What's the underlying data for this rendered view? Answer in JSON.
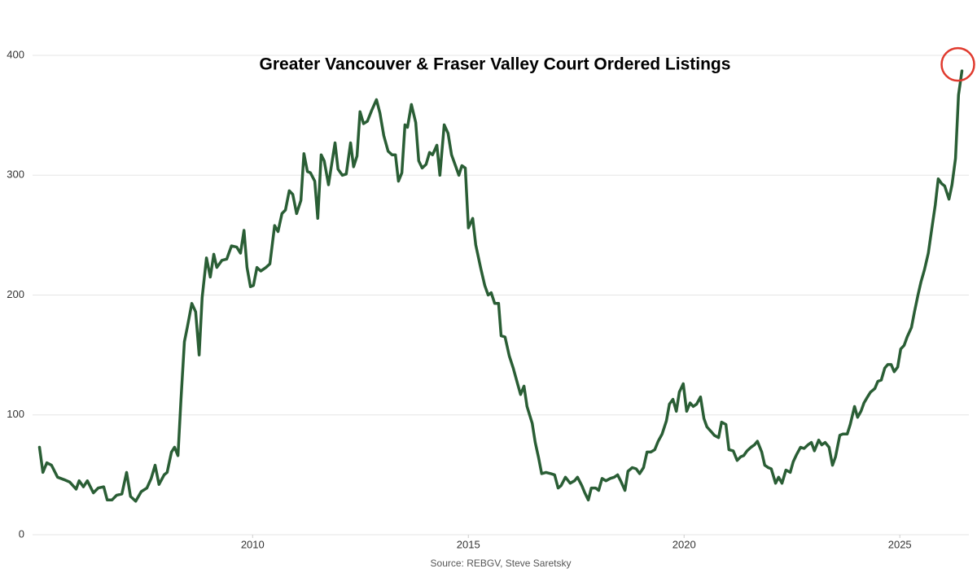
{
  "chart_data": {
    "type": "line",
    "title": "Greater Vancouver & Fraser Valley Court Ordered Listings",
    "source": "Source: REBGV, Steve Saretsky",
    "color": "#2a5e35",
    "highlight_color": "#e03a2e",
    "grid": true,
    "xlim": [
      2004.9,
      2026.6
    ],
    "xticks": [
      2010,
      2015,
      2020,
      2025
    ],
    "ylim": [
      0,
      400
    ],
    "yticks": [
      0,
      100,
      200,
      300,
      400
    ],
    "x": [
      2005.06,
      2005.14,
      2005.23,
      2005.34,
      2005.48,
      2005.63,
      2005.76,
      2005.91,
      2005.98,
      2006.08,
      2006.17,
      2006.31,
      2006.42,
      2006.55,
      2006.63,
      2006.74,
      2006.85,
      2006.97,
      2007.08,
      2007.17,
      2007.29,
      2007.42,
      2007.55,
      2007.65,
      2007.74,
      2007.83,
      2007.95,
      2008.02,
      2008.12,
      2008.19,
      2008.27,
      2008.34,
      2008.42,
      2008.49,
      2008.59,
      2008.68,
      2008.76,
      2008.83,
      2008.93,
      2009.02,
      2009.1,
      2009.17,
      2009.29,
      2009.4,
      2009.51,
      2009.63,
      2009.72,
      2009.8,
      2009.87,
      2009.95,
      2010.02,
      2010.1,
      2010.19,
      2010.31,
      2010.4,
      2010.51,
      2010.59,
      2010.68,
      2010.76,
      2010.85,
      2010.93,
      2011.02,
      2011.12,
      2011.19,
      2011.27,
      2011.34,
      2011.44,
      2011.51,
      2011.59,
      2011.66,
      2011.76,
      2011.81,
      2011.91,
      2011.98,
      2012.08,
      2012.17,
      2012.27,
      2012.34,
      2012.42,
      2012.49,
      2012.57,
      2012.66,
      2012.76,
      2012.87,
      2012.95,
      2013.04,
      2013.14,
      2013.23,
      2013.31,
      2013.38,
      2013.46,
      2013.53,
      2013.59,
      2013.68,
      2013.78,
      2013.85,
      2013.93,
      2014.02,
      2014.1,
      2014.17,
      2014.27,
      2014.34,
      2014.44,
      2014.53,
      2014.61,
      2014.7,
      2014.78,
      2014.85,
      2014.93,
      2015.0,
      2015.1,
      2015.17,
      2015.29,
      2015.38,
      2015.46,
      2015.53,
      2015.61,
      2015.7,
      2015.76,
      2015.85,
      2015.95,
      2016.04,
      2016.14,
      2016.21,
      2016.29,
      2016.36,
      2016.48,
      2016.55,
      2016.63,
      2016.7,
      2016.8,
      2016.91,
      2017.0,
      2017.08,
      2017.15,
      2017.25,
      2017.36,
      2017.46,
      2017.53,
      2017.63,
      2017.7,
      2017.78,
      2017.85,
      2017.95,
      2018.02,
      2018.1,
      2018.19,
      2018.29,
      2018.38,
      2018.46,
      2018.53,
      2018.63,
      2018.7,
      2018.8,
      2018.89,
      2018.97,
      2019.06,
      2019.14,
      2019.23,
      2019.32,
      2019.4,
      2019.49,
      2019.59,
      2019.66,
      2019.74,
      2019.82,
      2019.89,
      2019.98,
      2020.06,
      2020.14,
      2020.21,
      2020.29,
      2020.38,
      2020.46,
      2020.53,
      2020.63,
      2020.7,
      2020.8,
      2020.87,
      2020.97,
      2021.04,
      2021.14,
      2021.23,
      2021.31,
      2021.38,
      2021.46,
      2021.55,
      2021.63,
      2021.7,
      2021.8,
      2021.87,
      2021.95,
      2022.02,
      2022.12,
      2022.19,
      2022.27,
      2022.36,
      2022.46,
      2022.53,
      2022.61,
      2022.7,
      2022.78,
      2022.87,
      2022.95,
      2023.02,
      2023.12,
      2023.19,
      2023.27,
      2023.36,
      2023.44,
      2023.51,
      2023.61,
      2023.68,
      2023.78,
      2023.85,
      2023.95,
      2024.02,
      2024.1,
      2024.17,
      2024.25,
      2024.32,
      2024.42,
      2024.49,
      2024.57,
      2024.65,
      2024.72,
      2024.8,
      2024.87,
      2024.95,
      2025.02,
      2025.1,
      2025.17,
      2025.27,
      2025.34,
      2025.42,
      2025.49,
      2025.57,
      2025.66,
      2025.74,
      2025.82,
      2025.89,
      2025.97,
      2026.04,
      2026.14,
      2026.21,
      2026.29,
      2026.36,
      2026.44
    ],
    "values": [
      73,
      52,
      60,
      58,
      48,
      46,
      44,
      38,
      45,
      40,
      45,
      35,
      39,
      40,
      29,
      29,
      33,
      34,
      52,
      32,
      28,
      36,
      39,
      47,
      58,
      42,
      50,
      52,
      69,
      73,
      66,
      113,
      161,
      174,
      193,
      186,
      150,
      198,
      231,
      215,
      234,
      223,
      229,
      230,
      241,
      240,
      235,
      254,
      223,
      207,
      208,
      223,
      220,
      223,
      226,
      258,
      253,
      268,
      271,
      287,
      284,
      268,
      279,
      318,
      303,
      302,
      295,
      264,
      317,
      312,
      292,
      304,
      327,
      305,
      300,
      301,
      327,
      307,
      316,
      353,
      343,
      345,
      354,
      363,
      352,
      333,
      320,
      317,
      317,
      295,
      302,
      342,
      340,
      359,
      344,
      312,
      306,
      309,
      319,
      317,
      325,
      300,
      342,
      335,
      317,
      308,
      300,
      308,
      306,
      256,
      264,
      242,
      222,
      208,
      200,
      202,
      193,
      193,
      166,
      165,
      149,
      139,
      126,
      117,
      124,
      107,
      93,
      77,
      64,
      51,
      52,
      51,
      50,
      39,
      41,
      48,
      43,
      45,
      48,
      41,
      35,
      29,
      39,
      39,
      37,
      47,
      45,
      47,
      48,
      50,
      45,
      37,
      53,
      56,
      55,
      51,
      56,
      69,
      69,
      71,
      78,
      84,
      95,
      109,
      113,
      103,
      119,
      126,
      103,
      110,
      107,
      109,
      115,
      97,
      90,
      86,
      83,
      81,
      94,
      92,
      71,
      70,
      62,
      65,
      66,
      70,
      73,
      75,
      78,
      69,
      58,
      56,
      55,
      43,
      48,
      43,
      54,
      52,
      61,
      67,
      73,
      72,
      75,
      77,
      70,
      79,
      75,
      77,
      73,
      58,
      65,
      83,
      84,
      84,
      92,
      107,
      98,
      103,
      110,
      115,
      119,
      122,
      128,
      129,
      139,
      142,
      142,
      136,
      140,
      155,
      158,
      165,
      173,
      186,
      200,
      211,
      221,
      235,
      255,
      275,
      297,
      293,
      291,
      280,
      292,
      314,
      367,
      387
    ]
  }
}
